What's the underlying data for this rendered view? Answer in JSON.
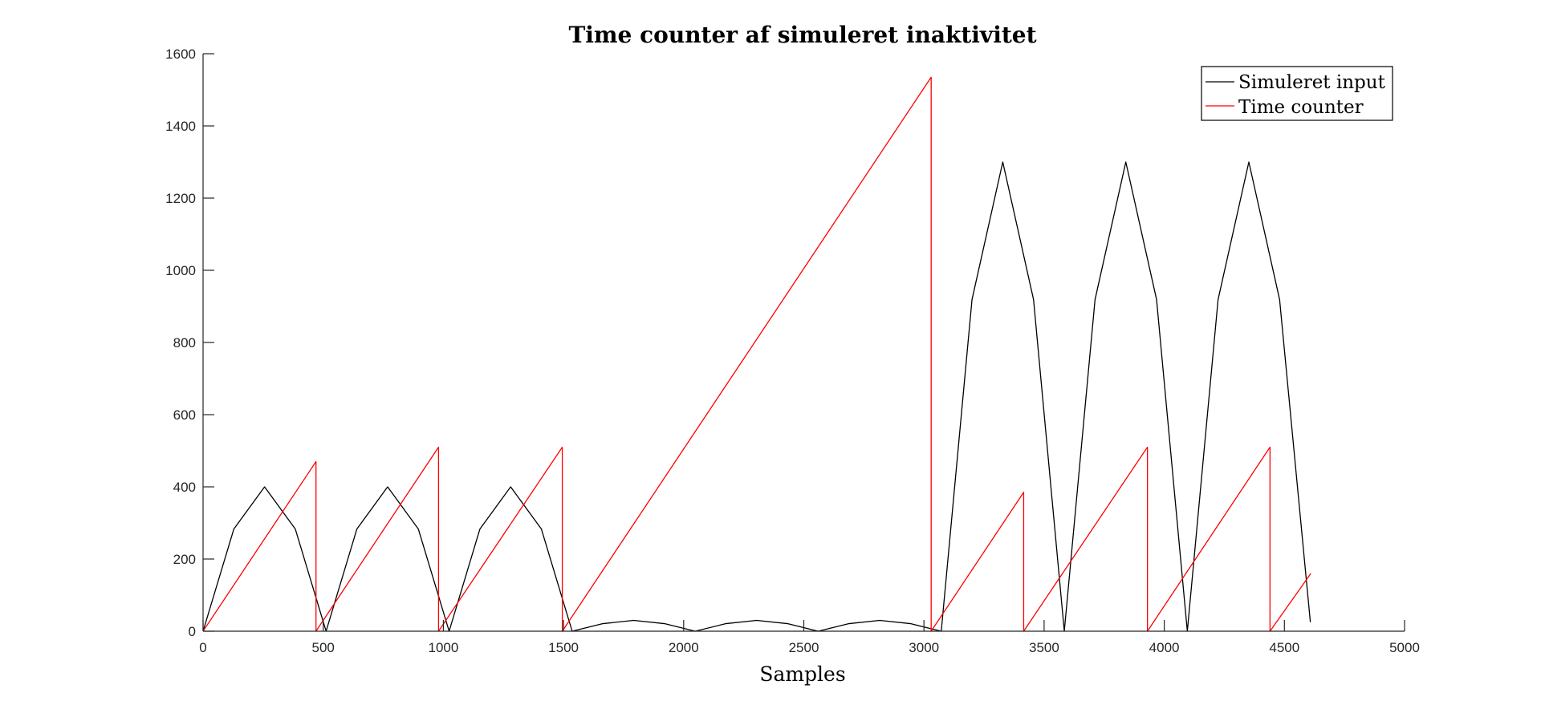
{
  "chart_data": {
    "type": "line",
    "title": "Time counter af simuleret inaktivitet",
    "xlabel": "Samples",
    "ylabel": "",
    "xlim": [
      0,
      5000
    ],
    "ylim": [
      0,
      1600
    ],
    "x_ticks": [
      "0",
      "500",
      "1000",
      "1500",
      "2000",
      "2500",
      "3000",
      "3500",
      "4000",
      "4500",
      "5000"
    ],
    "y_ticks": [
      "0",
      "200",
      "400",
      "600",
      "800",
      "1000",
      "1200",
      "1400",
      "1600"
    ],
    "grid": false,
    "legend_position": "top-right",
    "series": [
      {
        "name": "Simuleret input",
        "color": "#000000",
        "points": [
          [
            0,
            0
          ],
          [
            128,
            283
          ],
          [
            256,
            400
          ],
          [
            384,
            283
          ],
          [
            512,
            0
          ],
          [
            640,
            283
          ],
          [
            768,
            400
          ],
          [
            896,
            283
          ],
          [
            1024,
            0
          ],
          [
            1152,
            283
          ],
          [
            1280,
            400
          ],
          [
            1408,
            283
          ],
          [
            1536,
            0
          ],
          [
            1664,
            21
          ],
          [
            1792,
            30
          ],
          [
            1920,
            21
          ],
          [
            2048,
            0
          ],
          [
            2176,
            21
          ],
          [
            2304,
            30
          ],
          [
            2432,
            21
          ],
          [
            2560,
            0
          ],
          [
            2688,
            21
          ],
          [
            2816,
            30
          ],
          [
            2944,
            21
          ],
          [
            3072,
            0
          ],
          [
            3200,
            919
          ],
          [
            3328,
            1300
          ],
          [
            3456,
            919
          ],
          [
            3584,
            0
          ],
          [
            3712,
            919
          ],
          [
            3840,
            1300
          ],
          [
            3968,
            919
          ],
          [
            4096,
            0
          ],
          [
            4224,
            919
          ],
          [
            4352,
            1300
          ],
          [
            4480,
            919
          ],
          [
            4608,
            25
          ]
        ]
      },
      {
        "name": "Time counter",
        "color": "#ff0000",
        "points": [
          [
            0,
            0
          ],
          [
            470,
            470
          ],
          [
            470,
            0
          ],
          [
            980,
            510
          ],
          [
            980,
            0
          ],
          [
            1495,
            510
          ],
          [
            1495,
            0
          ],
          [
            3030,
            1535
          ],
          [
            3030,
            0
          ],
          [
            3415,
            385
          ],
          [
            3415,
            0
          ],
          [
            3930,
            510
          ],
          [
            3930,
            0
          ],
          [
            4440,
            510
          ],
          [
            4440,
            0
          ],
          [
            4610,
            160
          ]
        ]
      }
    ]
  }
}
